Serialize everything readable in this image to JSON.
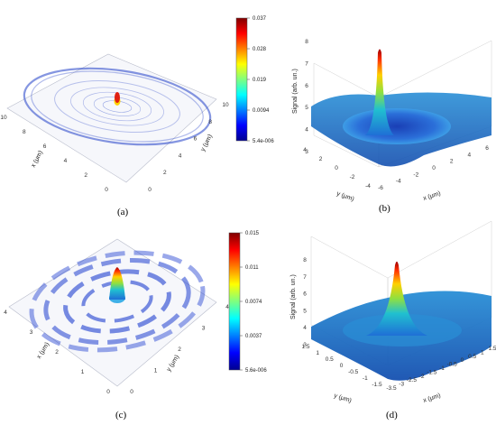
{
  "captions": [
    "(a)",
    "(b)",
    "(c)",
    "(d)"
  ],
  "chart_data": [
    {
      "type": "heatmap",
      "panel": "(a)",
      "xlabel": "x (μm)",
      "ylabel": "y (μm)",
      "xticks": [
        "0",
        "2",
        "4",
        "6",
        "8",
        "10"
      ],
      "yticks": [
        "0",
        "2",
        "4",
        "6",
        "8",
        "10"
      ],
      "xlim": [
        0,
        10
      ],
      "ylim": [
        0,
        10
      ],
      "colorbar": {
        "ticks": [
          "0.037",
          "0.028",
          "0.019",
          "0.0094",
          "5.4e-006"
        ],
        "min": 5.4e-06,
        "max": 0.037
      }
    },
    {
      "type": "area",
      "panel": "(b)",
      "zlabel": "Signal (arb. un.)",
      "xlabel": "x (μm)",
      "ylabel": "y (μm)",
      "zticks": [
        "3",
        "4",
        "5",
        "6",
        "7",
        "8"
      ],
      "xticks": [
        "-6",
        "-4",
        "-2",
        "0",
        "2",
        "4",
        "6"
      ],
      "yticks": [
        "-4",
        "-2",
        "0",
        "2",
        "4"
      ],
      "zlim": [
        3,
        8
      ],
      "peak": 7.7,
      "baseline": 4.5,
      "grid": true
    },
    {
      "type": "heatmap",
      "panel": "(c)",
      "xlabel": "x (μm)",
      "ylabel": "y (μm)",
      "xticks": [
        "0",
        "1",
        "2",
        "3",
        "4"
      ],
      "yticks": [
        "0",
        "1",
        "2",
        "3",
        "4"
      ],
      "xlim": [
        0,
        4
      ],
      "ylim": [
        0,
        4
      ],
      "colorbar": {
        "ticks": [
          "0.015",
          "0.011",
          "0.0074",
          "0.0037",
          "5.6e-006"
        ],
        "min": 5.6e-06,
        "max": 0.015
      }
    },
    {
      "type": "area",
      "panel": "(d)",
      "zlabel": "Signal (arb. un.)",
      "xlabel": "x (μm)",
      "ylabel": "y (μm)",
      "zticks": [
        "3",
        "4",
        "5",
        "6",
        "7",
        "8"
      ],
      "xticks": [
        "-3.5",
        "-3",
        "-2.5",
        "-2",
        "-1.5",
        "-1",
        "-0.5",
        "0",
        "0.5",
        "1",
        "1.5"
      ],
      "yticks": [
        "-1.5",
        "-1",
        "-0.5",
        "0",
        "0.5",
        "1",
        "1.5"
      ],
      "zlim": [
        3,
        8
      ],
      "peak": 7.8,
      "baseline": 4.0,
      "grid": true
    }
  ]
}
